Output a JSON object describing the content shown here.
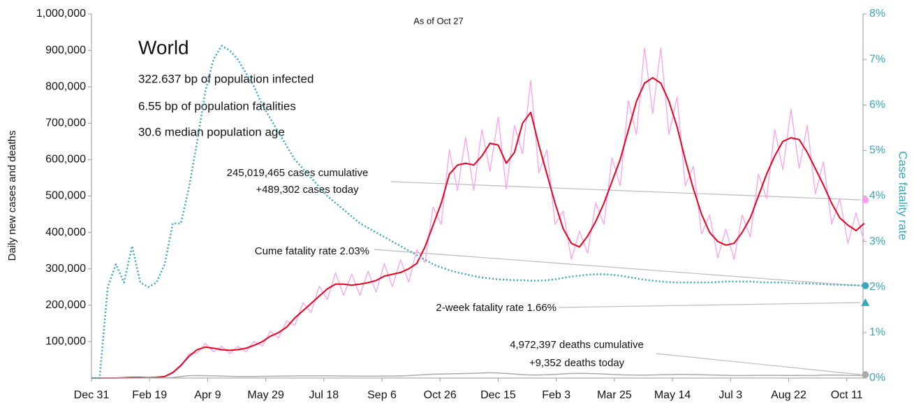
{
  "chart_data": {
    "type": "line",
    "subtitle": "As of Oct 27",
    "ylabel": "Daily new cases and deaths",
    "y2label": "Case fatality rate",
    "info": {
      "title": "World",
      "lines": [
        "322.637 bp of population infected",
        "6.55 bp of population fatalities",
        "30.6 median population age"
      ]
    },
    "annotations": [
      "245,019,465 cases cumulative",
      "+489,302 cases today",
      "Cume fatality rate 2.03%",
      "2-week fatality rate 1.66%",
      "4,972,397 deaths cumulative",
      "+9,352 deaths today"
    ],
    "markers": [
      {
        "x": 666,
        "value": 489302,
        "color": "#f9a0f0",
        "shape": "circle"
      },
      {
        "x": 666,
        "value": 2.03,
        "axis": "y2",
        "color": "#3aa6b9",
        "shape": "circle"
      },
      {
        "x": 666,
        "value": 1.66,
        "axis": "y2",
        "color": "#3aa6b9",
        "shape": "triangle"
      },
      {
        "x": 666,
        "value": 9352,
        "color": "#aaaaaa",
        "shape": "circle"
      }
    ],
    "xlim": [
      0,
      664
    ],
    "xticks": [
      {
        "value": 0,
        "label": "Dec 31"
      },
      {
        "value": 50,
        "label": "Feb 19"
      },
      {
        "value": 100,
        "label": "Apr 9"
      },
      {
        "value": 150,
        "label": "May 29"
      },
      {
        "value": 200,
        "label": "Jul 18"
      },
      {
        "value": 250,
        "label": "Sep 6"
      },
      {
        "value": 300,
        "label": "Oct 26"
      },
      {
        "value": 350,
        "label": "Dec 15"
      },
      {
        "value": 400,
        "label": "Feb 3"
      },
      {
        "value": 450,
        "label": "Mar 25"
      },
      {
        "value": 500,
        "label": "May 14"
      },
      {
        "value": 550,
        "label": "Jul 3"
      },
      {
        "value": 600,
        "label": "Aug 22"
      },
      {
        "value": 650,
        "label": "Oct 11"
      }
    ],
    "ylim": [
      0,
      1000000
    ],
    "yticks": [
      {
        "value": 100000,
        "label": "100,000"
      },
      {
        "value": 200000,
        "label": "200,000"
      },
      {
        "value": 300000,
        "label": "300,000"
      },
      {
        "value": 400000,
        "label": "400,000"
      },
      {
        "value": 500000,
        "label": "500,000"
      },
      {
        "value": 600000,
        "label": "600,000"
      },
      {
        "value": 700000,
        "label": "700,000"
      },
      {
        "value": 800000,
        "label": "800,000"
      },
      {
        "value": 900000,
        "label": "900,000"
      },
      {
        "value": 1000000,
        "label": "1,000,000"
      }
    ],
    "y2lim": [
      0,
      8
    ],
    "y2ticks": [
      {
        "value": 0,
        "label": "0%"
      },
      {
        "value": 1,
        "label": "1%"
      },
      {
        "value": 2,
        "label": "2%"
      },
      {
        "value": 3,
        "label": "3%"
      },
      {
        "value": 4,
        "label": "4%"
      },
      {
        "value": 5,
        "label": "5%"
      },
      {
        "value": 6,
        "label": "6%"
      },
      {
        "value": 7,
        "label": "7%"
      },
      {
        "value": 8,
        "label": "8%"
      }
    ],
    "x": [
      0,
      7,
      14,
      21,
      28,
      35,
      42,
      49,
      56,
      63,
      70,
      77,
      84,
      91,
      98,
      105,
      112,
      119,
      126,
      133,
      140,
      147,
      154,
      161,
      168,
      175,
      182,
      189,
      196,
      203,
      210,
      217,
      224,
      231,
      238,
      245,
      252,
      259,
      266,
      273,
      280,
      287,
      294,
      301,
      308,
      315,
      322,
      329,
      336,
      343,
      350,
      357,
      364,
      371,
      378,
      385,
      392,
      399,
      406,
      413,
      420,
      427,
      434,
      441,
      448,
      455,
      462,
      469,
      476,
      483,
      490,
      497,
      504,
      511,
      518,
      525,
      532,
      539,
      546,
      553,
      560,
      567,
      574,
      581,
      588,
      595,
      602,
      609,
      616,
      623,
      630,
      637,
      644,
      651,
      658,
      665
    ],
    "series": [
      {
        "color": "#f9a0f0",
        "width": 1.3,
        "values": [
          0,
          0,
          0,
          0,
          1000,
          2000,
          2000,
          1000,
          3000,
          4000,
          17000,
          31000,
          67000,
          69000,
          95000,
          72000,
          87000,
          67000,
          87000,
          72000,
          101000,
          88000,
          129000,
          110000,
          157000,
          145000,
          207000,
          180000,
          252000,
          216000,
          289000,
          227000,
          286000,
          227000,
          293000,
          236000,
          314000,
          251000,
          325000,
          264000,
          353000,
          317000,
          470000,
          422000,
          627000,
          515000,
          661000,
          515000,
          683000,
          568000,
          717000,
          519000,
          694000,
          616000,
          818000,
          563000,
          627000,
          422000,
          459000,
          326000,
          403000,
          343000,
          482000,
          422000,
          605000,
          528000,
          762000,
          669000,
          907000,
          726000,
          907000,
          669000,
          773000,
          528000,
          582000,
          396000,
          448000,
          330000,
          409000,
          326000,
          448000,
          387000,
          560000,
          493000,
          683000,
          572000,
          739000,
          576000,
          694000,
          506000,
          594000,
          422000,
          493000,
          370000,
          454000,
          374000
        ]
      },
      {
        "color": "#e8001c",
        "width": 2,
        "values": [
          0,
          0,
          0,
          0,
          1000,
          2000,
          2000,
          1000,
          2000,
          4000,
          15000,
          35000,
          60000,
          78000,
          85000,
          82000,
          78000,
          76000,
          78000,
          82000,
          90000,
          100000,
          115000,
          125000,
          140000,
          165000,
          185000,
          205000,
          225000,
          245000,
          258000,
          258000,
          255000,
          258000,
          262000,
          268000,
          280000,
          285000,
          290000,
          300000,
          315000,
          360000,
          420000,
          480000,
          560000,
          585000,
          590000,
          585000,
          610000,
          645000,
          640000,
          590000,
          620000,
          700000,
          730000,
          640000,
          560000,
          480000,
          410000,
          370000,
          360000,
          390000,
          430000,
          480000,
          540000,
          600000,
          680000,
          760000,
          810000,
          825000,
          810000,
          760000,
          690000,
          600000,
          520000,
          450000,
          400000,
          375000,
          365000,
          370000,
          400000,
          440000,
          500000,
          560000,
          610000,
          650000,
          660000,
          655000,
          620000,
          575000,
          530000,
          480000,
          440000,
          420000,
          405000,
          425000
        ]
      },
      {
        "color": "#aaaaaa",
        "width": 1.5,
        "values": [
          0,
          0,
          0,
          0,
          0,
          50,
          100,
          100,
          100,
          300,
          1500,
          4000,
          6500,
          7000,
          6500,
          6000,
          5500,
          4800,
          4500,
          4500,
          4500,
          4800,
          5000,
          5200,
          5500,
          5800,
          6000,
          6000,
          6200,
          6000,
          5800,
          5600,
          5500,
          5400,
          5300,
          5400,
          5500,
          5600,
          6000,
          6800,
          8000,
          9500,
          10500,
          11000,
          11500,
          12000,
          12500,
          13000,
          14000,
          14500,
          14000,
          12500,
          11000,
          9500,
          8500,
          8500,
          9000,
          10000,
          11500,
          12500,
          13000,
          12500,
          12000,
          11000,
          10000,
          9000,
          8500,
          8000,
          8000,
          8500,
          9000,
          9500,
          10000,
          10000,
          9500,
          9000,
          8500,
          8000,
          7500,
          7000,
          7000,
          7200,
          7500,
          7500,
          7400,
          7300,
          7200,
          7100,
          7000,
          7000,
          8000,
          8500,
          8000,
          7500,
          7200,
          7000
        ]
      },
      {
        "color": "#3aa6b9",
        "width": 2.5,
        "dash": "2 3",
        "axis": "y2",
        "values": [
          0,
          0,
          2.0,
          2.5,
          2.1,
          2.9,
          2.1,
          2.0,
          2.1,
          2.5,
          3.4,
          3.4,
          4.2,
          5.2,
          6.3,
          7.0,
          7.3,
          7.2,
          7.0,
          6.7,
          6.4,
          6.0,
          5.7,
          5.4,
          5.1,
          4.8,
          4.6,
          4.4,
          4.2,
          4.0,
          3.85,
          3.7,
          3.55,
          3.4,
          3.3,
          3.2,
          3.1,
          3.0,
          2.9,
          2.8,
          2.7,
          2.6,
          2.5,
          2.43,
          2.37,
          2.32,
          2.28,
          2.24,
          2.21,
          2.19,
          2.17,
          2.16,
          2.15,
          2.15,
          2.14,
          2.14,
          2.15,
          2.17,
          2.2,
          2.23,
          2.25,
          2.27,
          2.28,
          2.28,
          2.27,
          2.25,
          2.22,
          2.19,
          2.16,
          2.14,
          2.12,
          2.11,
          2.1,
          2.1,
          2.1,
          2.1,
          2.1,
          2.11,
          2.12,
          2.12,
          2.12,
          2.12,
          2.11,
          2.1,
          2.1,
          2.1,
          2.09,
          2.08,
          2.08,
          2.07,
          2.06,
          2.05,
          2.05,
          2.04,
          2.04,
          2.03
        ]
      }
    ]
  }
}
